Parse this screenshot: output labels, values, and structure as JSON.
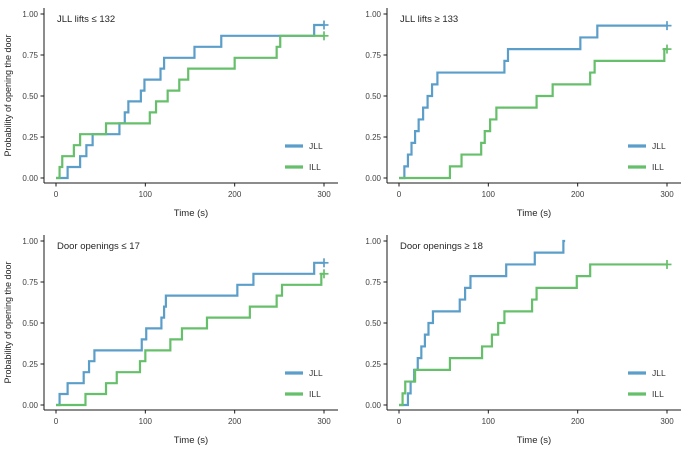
{
  "figure": {
    "background": "#ffffff",
    "axis_color": "#1a1a1a",
    "tick_text_color": "#404040",
    "title_text_color": "#262626",
    "series_colors": {
      "JLL": "#5b9ec9",
      "ILL": "#66bf6a"
    },
    "ylabel": "Probability of opening the door",
    "xlabel": "Time (s)"
  },
  "chart_data": [
    {
      "type": "line",
      "subtype": "step-km-cumulative",
      "title": "JLL lifts ≤ 132",
      "xlabel": "Time (s)",
      "ylabel": "Probability of opening the door",
      "show_ylabel": true,
      "xlim": [
        0,
        310
      ],
      "ylim": [
        0,
        1
      ],
      "xticks": [
        0,
        100,
        200,
        300
      ],
      "xtick_labels": [
        "0",
        "100",
        "200",
        "300"
      ],
      "yticks": [
        0,
        0.25,
        0.5,
        0.75,
        1
      ],
      "ytick_labels": [
        "0.00",
        "0.25",
        "0.50",
        "0.75",
        "1.00"
      ],
      "legend": [
        "JLL",
        "ILL"
      ],
      "legend_position": "inside-right-lower",
      "grid": false,
      "series": [
        {
          "name": "JLL",
          "color": "#5b9ec9",
          "steps": [
            [
              13,
              0.067
            ],
            [
              27,
              0.133
            ],
            [
              34,
              0.2
            ],
            [
              41,
              0.267
            ],
            [
              71,
              0.333
            ],
            [
              77,
              0.4
            ],
            [
              81,
              0.467
            ],
            [
              95,
              0.533
            ],
            [
              99,
              0.6
            ],
            [
              117,
              0.667
            ],
            [
              121,
              0.733
            ],
            [
              155,
              0.8
            ],
            [
              185,
              0.867
            ],
            [
              289,
              0.933
            ]
          ],
          "end": 300,
          "censored": [
            [
              300,
              0.933
            ]
          ]
        },
        {
          "name": "ILL",
          "color": "#66bf6a",
          "steps": [
            [
              4,
              0.067
            ],
            [
              7,
              0.133
            ],
            [
              20,
              0.2
            ],
            [
              27,
              0.267
            ],
            [
              56,
              0.333
            ],
            [
              105,
              0.4
            ],
            [
              112,
              0.467
            ],
            [
              125,
              0.533
            ],
            [
              138,
              0.6
            ],
            [
              148,
              0.667
            ],
            [
              200,
              0.733
            ],
            [
              247,
              0.8
            ],
            [
              251,
              0.867
            ]
          ],
          "end": 300,
          "censored": [
            [
              300,
              0.867
            ]
          ]
        }
      ]
    },
    {
      "type": "line",
      "subtype": "step-km-cumulative",
      "title": "JLL lifts ≥ 133",
      "xlabel": "Time (s)",
      "ylabel": "Probability of opening the door",
      "show_ylabel": false,
      "xlim": [
        0,
        310
      ],
      "ylim": [
        0,
        1
      ],
      "xticks": [
        0,
        100,
        200,
        300
      ],
      "xtick_labels": [
        "0",
        "100",
        "200",
        "300"
      ],
      "yticks": [
        0,
        0.25,
        0.5,
        0.75,
        1
      ],
      "ytick_labels": [
        "0.00",
        "0.25",
        "0.50",
        "0.75",
        "1.00"
      ],
      "legend": [
        "JLL",
        "ILL"
      ],
      "legend_position": "inside-right-lower",
      "grid": false,
      "series": [
        {
          "name": "JLL",
          "color": "#5b9ec9",
          "steps": [
            [
              6,
              0.071
            ],
            [
              10,
              0.143
            ],
            [
              14,
              0.214
            ],
            [
              18,
              0.286
            ],
            [
              22,
              0.357
            ],
            [
              27,
              0.429
            ],
            [
              32,
              0.5
            ],
            [
              37,
              0.571
            ],
            [
              43,
              0.643
            ],
            [
              118,
              0.714
            ],
            [
              122,
              0.786
            ],
            [
              203,
              0.857
            ],
            [
              222,
              0.929
            ]
          ],
          "end": 300,
          "censored": [
            [
              300,
              0.929
            ]
          ]
        },
        {
          "name": "ILL",
          "color": "#66bf6a",
          "steps": [
            [
              57,
              0.071
            ],
            [
              70,
              0.143
            ],
            [
              92,
              0.214
            ],
            [
              96,
              0.286
            ],
            [
              102,
              0.357
            ],
            [
              109,
              0.429
            ],
            [
              154,
              0.5
            ],
            [
              172,
              0.571
            ],
            [
              214,
              0.643
            ],
            [
              219,
              0.714
            ],
            [
              297,
              0.786
            ]
          ],
          "end": 300,
          "censored": [
            [
              300,
              0.786
            ]
          ]
        }
      ]
    },
    {
      "type": "line",
      "subtype": "step-km-cumulative",
      "title": "Door openings ≤ 17",
      "xlabel": "Time (s)",
      "ylabel": "Probability of opening the door",
      "show_ylabel": true,
      "xlim": [
        0,
        310
      ],
      "ylim": [
        0,
        1
      ],
      "xticks": [
        0,
        100,
        200,
        300
      ],
      "xtick_labels": [
        "0",
        "100",
        "200",
        "300"
      ],
      "yticks": [
        0,
        0.25,
        0.5,
        0.75,
        1
      ],
      "ytick_labels": [
        "0.00",
        "0.25",
        "0.50",
        "0.75",
        "1.00"
      ],
      "legend": [
        "JLL",
        "ILL"
      ],
      "legend_position": "inside-right-lower",
      "grid": false,
      "series": [
        {
          "name": "JLL",
          "color": "#5b9ec9",
          "steps": [
            [
              4,
              0.067
            ],
            [
              13,
              0.133
            ],
            [
              31,
              0.2
            ],
            [
              37,
              0.267
            ],
            [
              43,
              0.333
            ],
            [
              96,
              0.4
            ],
            [
              101,
              0.467
            ],
            [
              118,
              0.533
            ],
            [
              121,
              0.6
            ],
            [
              123,
              0.667
            ],
            [
              203,
              0.733
            ],
            [
              221,
              0.8
            ],
            [
              289,
              0.867
            ]
          ],
          "end": 300,
          "censored": [
            [
              300,
              0.867
            ]
          ]
        },
        {
          "name": "ILL",
          "color": "#66bf6a",
          "steps": [
            [
              33,
              0.067
            ],
            [
              56,
              0.133
            ],
            [
              68,
              0.2
            ],
            [
              94,
              0.267
            ],
            [
              100,
              0.333
            ],
            [
              128,
              0.4
            ],
            [
              141,
              0.467
            ],
            [
              169,
              0.533
            ],
            [
              217,
              0.6
            ],
            [
              247,
              0.667
            ],
            [
              253,
              0.733
            ],
            [
              297,
              0.8
            ]
          ],
          "end": 300,
          "censored": [
            [
              300,
              0.8
            ]
          ]
        }
      ]
    },
    {
      "type": "line",
      "subtype": "step-km-cumulative",
      "title": "Door openings ≥ 18",
      "xlabel": "Time (s)",
      "ylabel": "Probability of opening the door",
      "show_ylabel": false,
      "xlim": [
        0,
        310
      ],
      "ylim": [
        0,
        1
      ],
      "xticks": [
        0,
        100,
        200,
        300
      ],
      "xtick_labels": [
        "0",
        "100",
        "200",
        "300"
      ],
      "yticks": [
        0,
        0.25,
        0.5,
        0.75,
        1
      ],
      "ytick_labels": [
        "0.00",
        "0.25",
        "0.50",
        "0.75",
        "1.00"
      ],
      "legend": [
        "JLL",
        "ILL"
      ],
      "legend_position": "inside-right-lower",
      "grid": false,
      "series": [
        {
          "name": "JLL",
          "color": "#5b9ec9",
          "steps": [
            [
              10,
              0.071
            ],
            [
              13,
              0.143
            ],
            [
              17,
              0.214
            ],
            [
              21,
              0.286
            ],
            [
              25,
              0.357
            ],
            [
              29,
              0.429
            ],
            [
              33,
              0.5
            ],
            [
              38,
              0.571
            ],
            [
              68,
              0.643
            ],
            [
              74,
              0.714
            ],
            [
              80,
              0.786
            ],
            [
              120,
              0.857
            ],
            [
              152,
              0.929
            ],
            [
              184,
              1.0
            ]
          ],
          "end": 186,
          "censored": []
        },
        {
          "name": "ILL",
          "color": "#66bf6a",
          "steps": [
            [
              4,
              0.071
            ],
            [
              7,
              0.143
            ],
            [
              18,
              0.214
            ],
            [
              57,
              0.286
            ],
            [
              93,
              0.357
            ],
            [
              104,
              0.429
            ],
            [
              111,
              0.5
            ],
            [
              118,
              0.571
            ],
            [
              149,
              0.643
            ],
            [
              154,
              0.714
            ],
            [
              199,
              0.786
            ],
            [
              214,
              0.857
            ]
          ],
          "end": 300,
          "censored": [
            [
              300,
              0.857
            ]
          ]
        }
      ]
    }
  ]
}
